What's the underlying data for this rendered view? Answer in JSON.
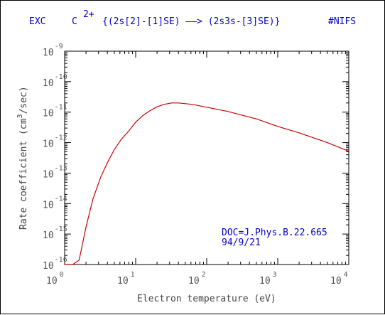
{
  "header": {
    "process": "EXC",
    "ion": "C",
    "charge": "2+",
    "transition": "{(2s[2]-[1]SE) ——> (2s3s-[3]SE)}",
    "source_tag": "#NIFS"
  },
  "chart_data": {
    "type": "line",
    "title": "",
    "xlabel": "Electron temperature (eV)",
    "ylabel": "Rate coefficient (cm3/sec)",
    "ylabel_parts": {
      "pre": "Rate coefficient (cm",
      "sup": "3",
      "post": "/sec)"
    },
    "x_scale": "log",
    "y_scale": "log",
    "xlim": [
      1,
      10000
    ],
    "ylim": [
      1e-16,
      1e-09
    ],
    "x_ticks": [
      {
        "base": "10",
        "exp": "0",
        "value": 1
      },
      {
        "base": "10",
        "exp": "1",
        "value": 10
      },
      {
        "base": "10",
        "exp": "2",
        "value": 100
      },
      {
        "base": "10",
        "exp": "3",
        "value": 1000
      },
      {
        "base": "10",
        "exp": "4",
        "value": 10000
      }
    ],
    "y_ticks": [
      {
        "base": "10",
        "exp": "-9",
        "value": 1e-09
      },
      {
        "base": "10",
        "exp": "-10",
        "value": 1e-10
      },
      {
        "base": "10",
        "exp": "-11",
        "value": 1e-11
      },
      {
        "base": "10",
        "exp": "-12",
        "value": 1e-12
      },
      {
        "base": "10",
        "exp": "-13",
        "value": 1e-13
      },
      {
        "base": "10",
        "exp": "-14",
        "value": 1e-14
      },
      {
        "base": "10",
        "exp": "-15",
        "value": 1e-15
      },
      {
        "base": "10",
        "exp": "-16",
        "value": 1e-16
      }
    ],
    "grid": false,
    "series": [
      {
        "color": "#cc0000",
        "x": [
          1.0,
          1.3,
          1.6,
          2.0,
          2.5,
          3.2,
          4.0,
          5.0,
          6.3,
          8.0,
          10,
          12.6,
          15.8,
          20,
          25,
          32,
          40,
          63,
          100,
          200,
          500,
          1000,
          2000,
          5000,
          10000
        ],
        "y": [
          1e-16,
          1e-16,
          1.4e-16,
          1.7e-15,
          1.4e-14,
          7.1e-14,
          2.2e-13,
          5.9e-13,
          1.3e-12,
          2.4e-12,
          4.7e-12,
          7.7e-12,
          1.1e-11,
          1.5e-11,
          1.8e-11,
          2e-11,
          2e-11,
          1.8e-11,
          1.45e-11,
          1.05e-11,
          6e-12,
          3.4e-12,
          2.1e-12,
          1e-12,
          5.2e-13
        ]
      }
    ],
    "annotation": [
      "DOC=J.Phys.B.22.665",
      "94/9/21"
    ]
  }
}
